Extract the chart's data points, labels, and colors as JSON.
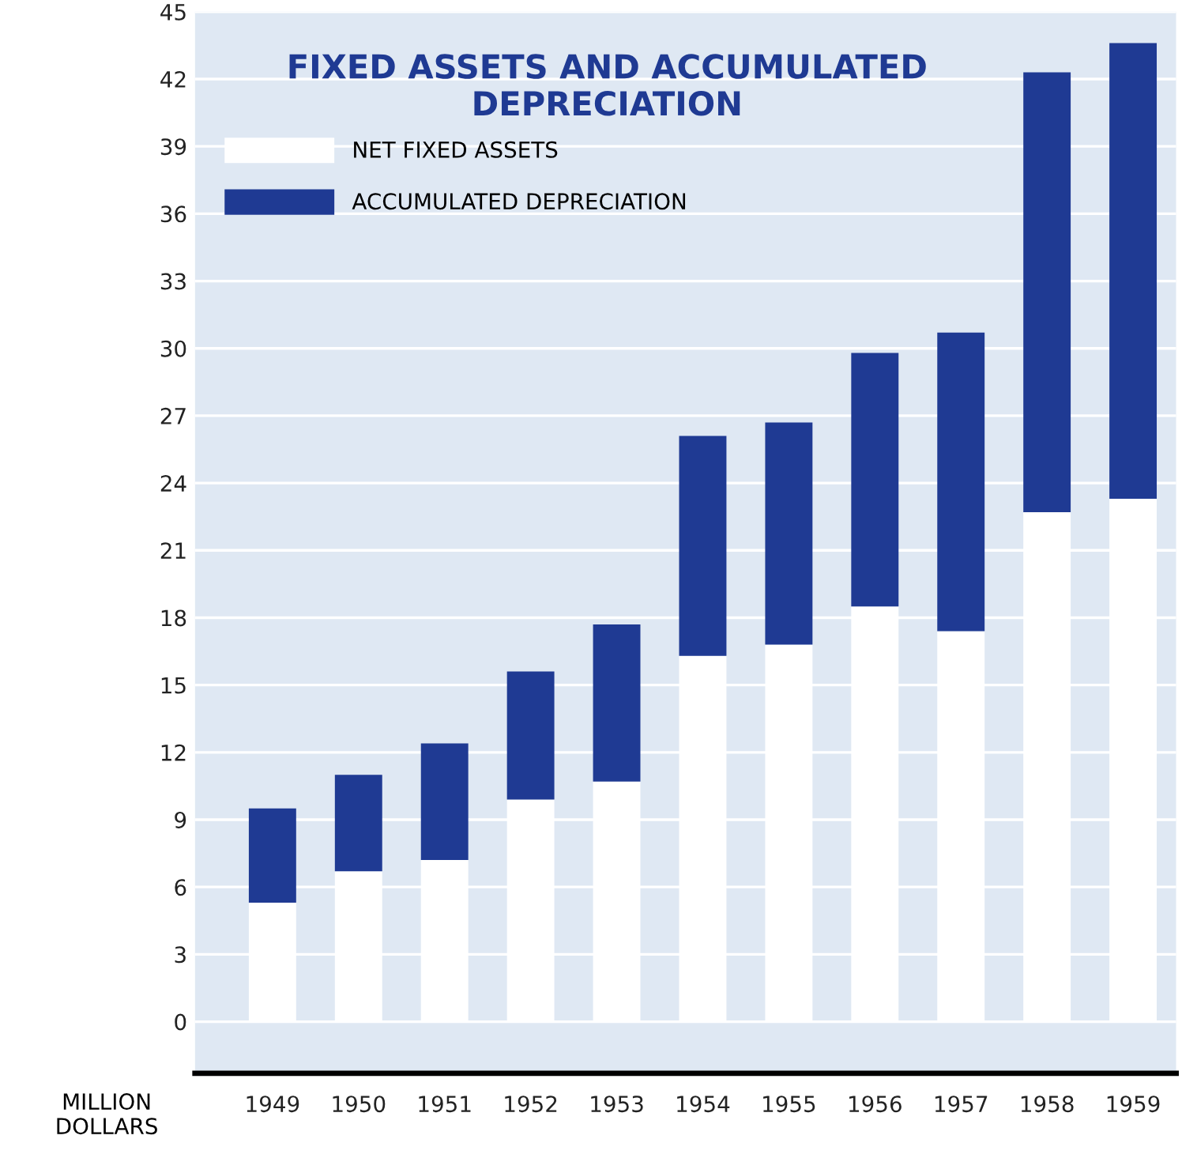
{
  "chart_data": {
    "type": "bar",
    "stacked": true,
    "title": "FIXED ASSETS AND ACCUMULATED\nDEPRECIATION",
    "ylabel": "MILLION\nDOLLARS",
    "categories": [
      "1949",
      "1950",
      "1951",
      "1952",
      "1953",
      "1954",
      "1955",
      "1956",
      "1957",
      "1958",
      "1959"
    ],
    "series": [
      {
        "name": "NET FIXED ASSETS",
        "color": "#ffffff",
        "values": [
          5.3,
          6.7,
          7.2,
          9.9,
          10.7,
          16.3,
          16.8,
          18.5,
          17.4,
          22.7,
          23.3
        ]
      },
      {
        "name": "ACCUMULATED DEPRECIATION",
        "color": "#1f3a93",
        "values": [
          4.2,
          4.3,
          5.2,
          5.7,
          7.0,
          9.8,
          9.9,
          11.3,
          13.3,
          19.6,
          20.3
        ]
      }
    ],
    "ylim": [
      -2.3,
      45
    ],
    "yticks": [
      0,
      3,
      6,
      9,
      12,
      15,
      18,
      21,
      24,
      27,
      30,
      33,
      36,
      39,
      42,
      45
    ],
    "grid": "y",
    "legend": "top left"
  }
}
